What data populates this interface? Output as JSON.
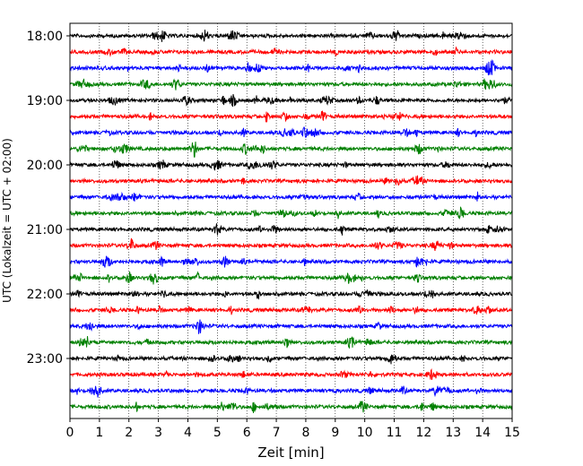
{
  "chart_data": {
    "type": "line",
    "title": "",
    "xlabel": "Zeit  [min]",
    "ylabel": "UTC (Lokalzeit = UTC + 02:00)",
    "xlim": [
      0,
      15
    ],
    "x_ticks": [
      "0",
      "1",
      "2",
      "3",
      "4",
      "5",
      "6",
      "7",
      "8",
      "9",
      "10",
      "11",
      "12",
      "13",
      "14",
      "15"
    ],
    "y_ticks": [
      "18:00",
      "19:00",
      "20:00",
      "21:00",
      "22:00",
      "23:00"
    ],
    "grid": "vertical dotted at each minute",
    "trace_start_times": [
      "18:00",
      "18:15",
      "18:30",
      "18:45",
      "19:00",
      "19:15",
      "19:30",
      "19:45",
      "20:00",
      "20:15",
      "20:30",
      "20:45",
      "21:00",
      "21:15",
      "21:30",
      "21:45",
      "22:00",
      "22:15",
      "22:30",
      "22:45",
      "23:00",
      "23:15",
      "23:30",
      "23:45"
    ],
    "trace_colors": [
      "#000000",
      "#ff0000",
      "#0000ff",
      "#008000"
    ]
  }
}
